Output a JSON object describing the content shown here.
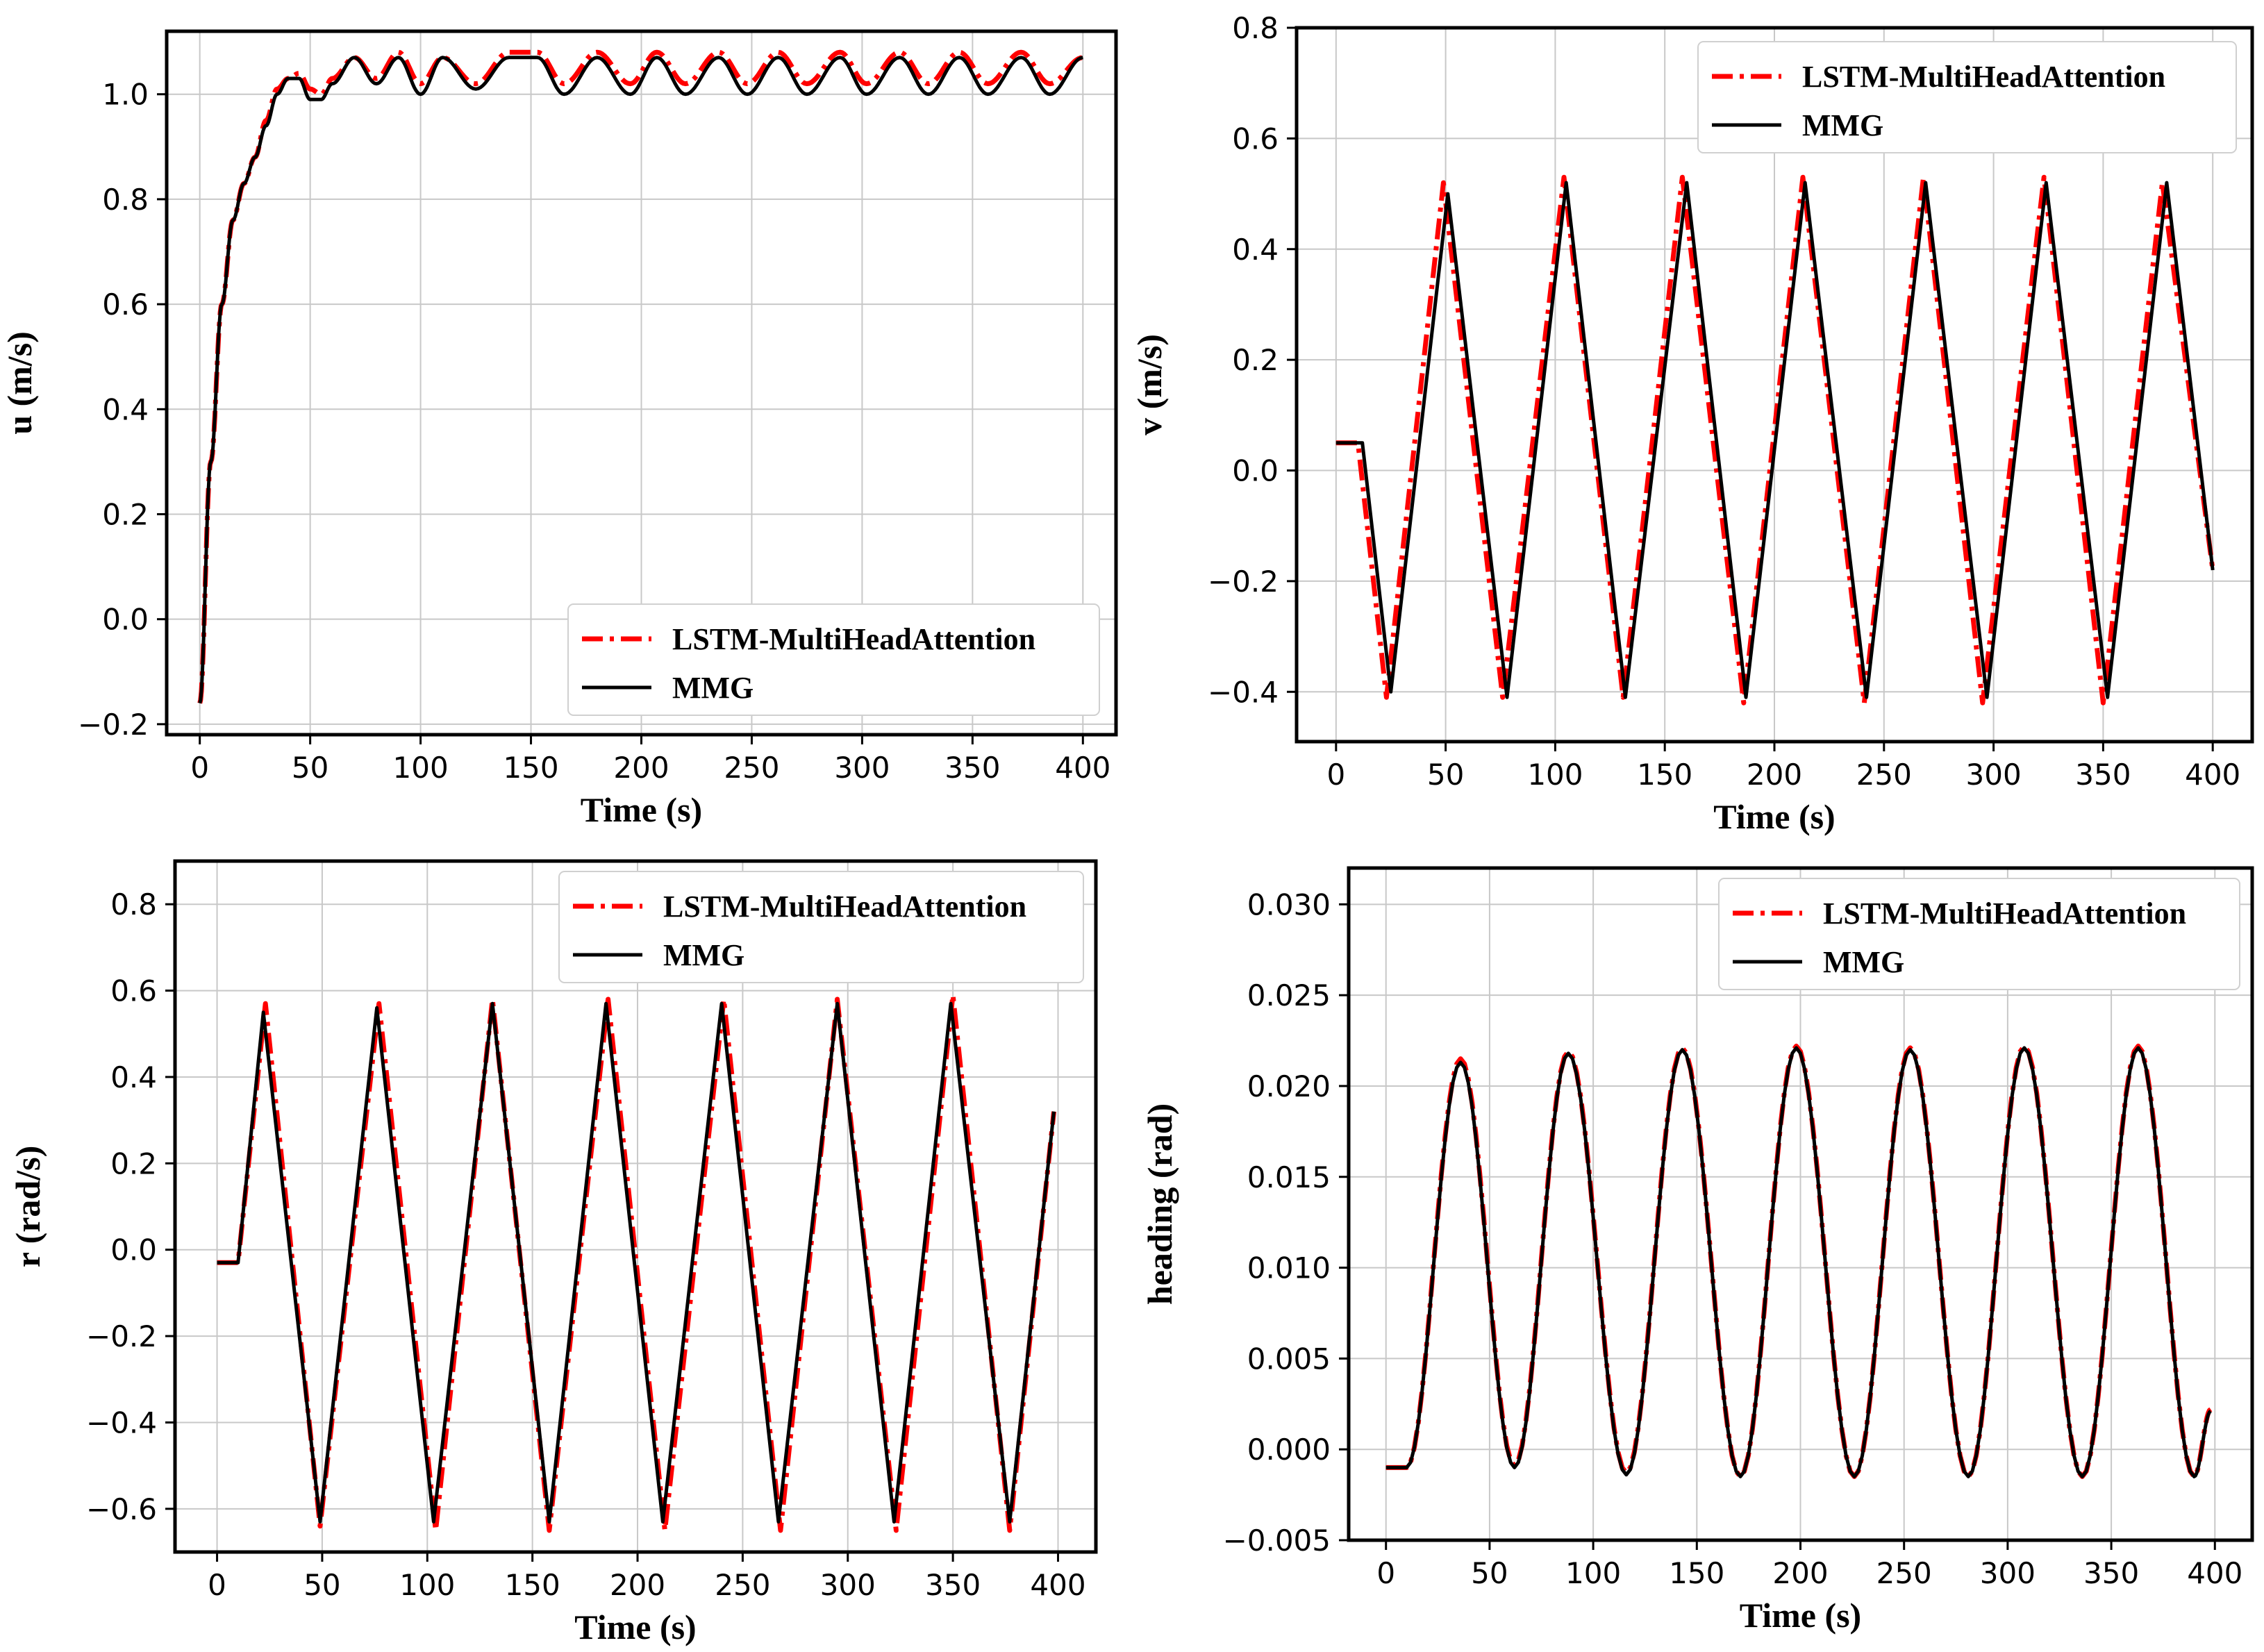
{
  "chart_data": [
    {
      "type": "line",
      "id": "u",
      "xlabel": "Time (s)",
      "ylabel": "u (m/s)",
      "xlim": [
        -15,
        415
      ],
      "ylim": [
        -0.22,
        1.12
      ],
      "xticks": [
        0,
        50,
        100,
        150,
        200,
        250,
        300,
        350,
        400
      ],
      "yticks": [
        -0.2,
        0.0,
        0.2,
        0.4,
        0.6,
        0.8,
        1.0
      ],
      "ytick_labels": [
        "−0.2",
        "0.0",
        "0.2",
        "0.4",
        "0.6",
        "0.8",
        "1.0"
      ],
      "legend_position": "lower-right",
      "series": [
        {
          "name": "LSTM-MultiHeadAttention",
          "style": "dashdot",
          "color": "#ff0000",
          "x": [
            0,
            5,
            10,
            15,
            20,
            25,
            30,
            35,
            40,
            45,
            50,
            55,
            60,
            70,
            80,
            90,
            100,
            110,
            125,
            140,
            153,
            165,
            180,
            195,
            207,
            220,
            235,
            248,
            262,
            275,
            290,
            302,
            317,
            330,
            344,
            357,
            372,
            385,
            400
          ],
          "values": [
            -0.16,
            0.3,
            0.6,
            0.76,
            0.83,
            0.88,
            0.95,
            1.01,
            1.03,
            1.04,
            1.01,
            1.0,
            1.03,
            1.07,
            1.03,
            1.08,
            1.02,
            1.07,
            1.02,
            1.08,
            1.08,
            1.02,
            1.08,
            1.02,
            1.08,
            1.02,
            1.08,
            1.02,
            1.08,
            1.02,
            1.08,
            1.02,
            1.08,
            1.02,
            1.08,
            1.02,
            1.08,
            1.02,
            1.07
          ]
        },
        {
          "name": "MMG",
          "style": "solid",
          "color": "#000000",
          "x": [
            0,
            5,
            10,
            15,
            20,
            25,
            30,
            35,
            40,
            45,
            50,
            55,
            60,
            70,
            80,
            90,
            100,
            110,
            125,
            140,
            153,
            165,
            180,
            195,
            207,
            220,
            235,
            248,
            262,
            275,
            290,
            302,
            317,
            330,
            344,
            357,
            372,
            385,
            400
          ],
          "values": [
            -0.16,
            0.3,
            0.6,
            0.76,
            0.83,
            0.88,
            0.94,
            1.0,
            1.03,
            1.03,
            0.99,
            0.99,
            1.02,
            1.07,
            1.02,
            1.07,
            1.0,
            1.07,
            1.01,
            1.07,
            1.07,
            1.0,
            1.07,
            1.0,
            1.07,
            1.0,
            1.07,
            1.0,
            1.07,
            1.0,
            1.07,
            1.0,
            1.07,
            1.0,
            1.07,
            1.0,
            1.07,
            1.0,
            1.07
          ]
        }
      ]
    },
    {
      "type": "line",
      "id": "v",
      "xlabel": "Time (s)",
      "ylabel": "v (m/s)",
      "xlim": [
        -18,
        418
      ],
      "ylim": [
        -0.49,
        0.8
      ],
      "xticks": [
        0,
        50,
        100,
        150,
        200,
        250,
        300,
        350,
        400
      ],
      "yticks": [
        -0.4,
        -0.2,
        0.0,
        0.2,
        0.4,
        0.6,
        0.8
      ],
      "ytick_labels": [
        "−0.4",
        "−0.2",
        "0.0",
        "0.2",
        "0.4",
        "0.6",
        "0.8"
      ],
      "legend_position": "top-right",
      "series": [
        {
          "name": "LSTM-MultiHeadAttention",
          "style": "dashdot",
          "color": "#ff0000",
          "x": [
            0,
            10,
            23,
            49,
            76,
            104,
            131,
            158,
            186,
            213,
            241,
            268,
            295,
            323,
            350,
            377,
            400
          ],
          "values": [
            0.05,
            0.05,
            -0.41,
            0.52,
            -0.41,
            0.53,
            -0.41,
            0.53,
            -0.42,
            0.53,
            -0.42,
            0.53,
            -0.42,
            0.53,
            -0.42,
            0.52,
            -0.18
          ]
        },
        {
          "name": "MMG",
          "style": "solid",
          "color": "#000000",
          "x": [
            0,
            12,
            25,
            51,
            78,
            105,
            132,
            160,
            187,
            214,
            242,
            269,
            297,
            324,
            352,
            379,
            400
          ],
          "values": [
            0.05,
            0.05,
            -0.4,
            0.5,
            -0.41,
            0.52,
            -0.41,
            0.52,
            -0.41,
            0.52,
            -0.41,
            0.52,
            -0.41,
            0.52,
            -0.41,
            0.52,
            -0.18
          ]
        }
      ]
    },
    {
      "type": "line",
      "id": "r",
      "xlabel": "Time (s)",
      "ylabel": "r (rad/s)",
      "xlim": [
        -20,
        418
      ],
      "ylim": [
        -0.7,
        0.9
      ],
      "xticks": [
        0,
        50,
        100,
        150,
        200,
        250,
        300,
        350,
        400
      ],
      "yticks": [
        -0.6,
        -0.4,
        -0.2,
        0.0,
        0.2,
        0.4,
        0.6,
        0.8
      ],
      "ytick_labels": [
        "−0.6",
        "−0.4",
        "−0.2",
        "0.0",
        "0.2",
        "0.4",
        "0.6",
        "0.8"
      ],
      "legend_position": "top-right",
      "series": [
        {
          "name": "LSTM-MultiHeadAttention",
          "style": "dashdot",
          "color": "#ff0000",
          "x": [
            0,
            10,
            23,
            49,
            77,
            104,
            131,
            158,
            186,
            213,
            241,
            268,
            295,
            323,
            350,
            377,
            398
          ],
          "values": [
            -0.03,
            -0.03,
            0.57,
            -0.64,
            0.57,
            -0.65,
            0.58,
            -0.65,
            0.58,
            -0.65,
            0.58,
            -0.65,
            0.58,
            -0.65,
            0.59,
            -0.65,
            0.32
          ]
        },
        {
          "name": "MMG",
          "style": "solid",
          "color": "#000000",
          "x": [
            0,
            10,
            22,
            49,
            76,
            103,
            131,
            158,
            185,
            212,
            240,
            267,
            295,
            322,
            349,
            377,
            398
          ],
          "values": [
            -0.03,
            -0.03,
            0.55,
            -0.63,
            0.56,
            -0.63,
            0.57,
            -0.63,
            0.57,
            -0.63,
            0.57,
            -0.63,
            0.57,
            -0.63,
            0.57,
            -0.63,
            0.32
          ]
        }
      ]
    },
    {
      "type": "line",
      "id": "heading",
      "xlabel": "Time (s)",
      "ylabel": "heading (rad)",
      "xlim": [
        -18,
        418
      ],
      "ylim": [
        -0.005,
        0.032
      ],
      "xticks": [
        0,
        50,
        100,
        150,
        200,
        250,
        300,
        350,
        400
      ],
      "yticks": [
        -0.005,
        0.0,
        0.005,
        0.01,
        0.015,
        0.02,
        0.025,
        0.03
      ],
      "ytick_labels": [
        "−0.005",
        "0.000",
        "0.005",
        "0.010",
        "0.015",
        "0.020",
        "0.025",
        "0.030"
      ],
      "legend_position": "top-right",
      "series": [
        {
          "name": "LSTM-MultiHeadAttention",
          "style": "dashdot",
          "color": "#ff0000",
          "phase_shift": 0.5,
          "points_desc": "smooth oscillation",
          "x": [
            0,
            10,
            36,
            62,
            88,
            116,
            143,
            171,
            198,
            226,
            253,
            281,
            308,
            336,
            363,
            390,
            398
          ],
          "values": [
            -0.001,
            -0.001,
            0.0215,
            -0.0009,
            0.0219,
            -0.0013,
            0.0221,
            -0.0015,
            0.0222,
            -0.0015,
            0.0221,
            -0.0015,
            0.0222,
            -0.0015,
            0.0222,
            -0.0015,
            0.0022
          ]
        },
        {
          "name": "MMG",
          "style": "solid",
          "color": "#000000",
          "phase_shift": 0.0,
          "points_desc": "smooth oscillation",
          "x": [
            0,
            10,
            36,
            62,
            88,
            116,
            143,
            171,
            198,
            226,
            253,
            281,
            308,
            336,
            363,
            390,
            398
          ],
          "values": [
            -0.001,
            -0.001,
            0.0213,
            -0.001,
            0.0218,
            -0.0014,
            0.022,
            -0.0015,
            0.0221,
            -0.0015,
            0.022,
            -0.0015,
            0.0221,
            -0.0015,
            0.0221,
            -0.0015,
            0.0021
          ]
        }
      ]
    }
  ]
}
